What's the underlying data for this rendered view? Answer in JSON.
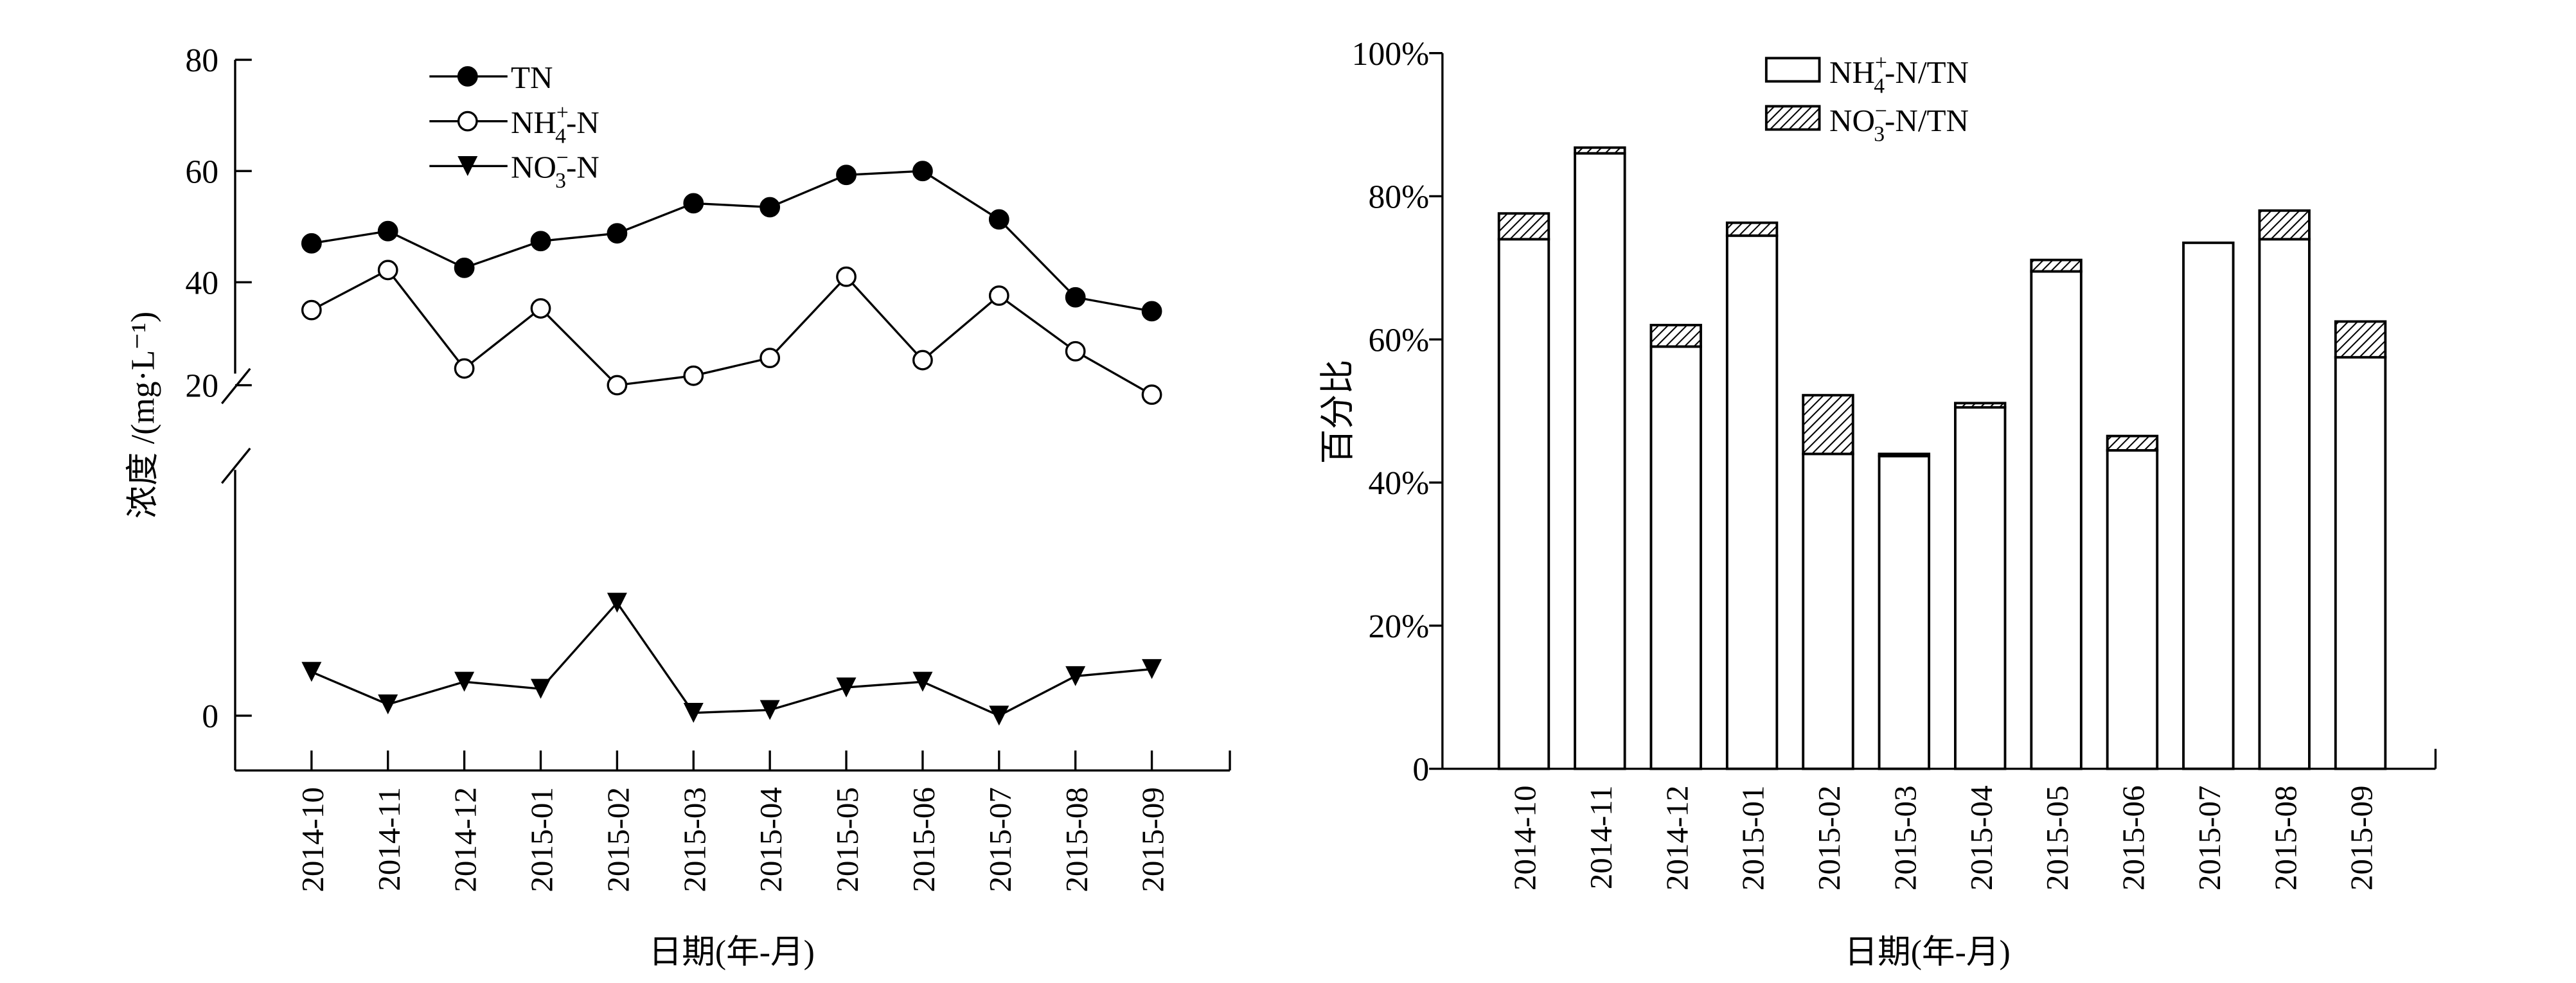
{
  "chart_data": [
    {
      "type": "line",
      "categories": [
        "2014-10",
        "2014-11",
        "2014-12",
        "2015-01",
        "2015-02",
        "2015-03",
        "2015-04",
        "2015-05",
        "2015-06",
        "2015-07",
        "2015-08",
        "2015-09"
      ],
      "xlabel": "日期(年-月)",
      "ylabel": "浓度 /(mg·L⁻¹)",
      "yticks": [
        "0",
        "20",
        "40",
        "60",
        "80"
      ],
      "axis_break": "between 0 and 20",
      "series": [
        {
          "name": "TN",
          "marker": "filled-circle",
          "values": [
            47.0,
            49.2,
            42.6,
            47.4,
            48.8,
            54.2,
            53.5,
            59.3,
            60.0,
            51.3,
            37.3,
            34.8
          ]
        },
        {
          "name": "NH4+-N",
          "label_main": "NH",
          "label_sub": "4",
          "label_sup": "+",
          "label_tail": "-N",
          "marker": "open-circle",
          "values": [
            35.0,
            42.2,
            24.5,
            35.3,
            21.5,
            23.2,
            26.4,
            41.0,
            26.0,
            37.6,
            27.6,
            19.8
          ]
        },
        {
          "name": "NO3--N",
          "label_main": "NO",
          "label_sub": "3",
          "label_sup": "−",
          "label_tail": "-N",
          "marker": "filled-triangle-down",
          "values": [
            1.55,
            0.4,
            1.2,
            0.95,
            4.0,
            0.1,
            0.2,
            1.0,
            1.2,
            0.0,
            1.4,
            1.65
          ]
        }
      ]
    },
    {
      "type": "bar",
      "stacked": true,
      "categories": [
        "2014-10",
        "2014-11",
        "2014-12",
        "2015-01",
        "2015-02",
        "2015-03",
        "2015-04",
        "2015-05",
        "2015-06",
        "2015-07",
        "2015-08",
        "2015-09"
      ],
      "xlabel": "日期(年-月)",
      "ylabel": "百分比",
      "yticks": [
        "0",
        "20%",
        "40%",
        "60%",
        "80%",
        "100%"
      ],
      "ylim": [
        0,
        100
      ],
      "series": [
        {
          "name": "NH4+-N/TN",
          "label_main": "NH",
          "label_sub": "4",
          "label_sup": "+",
          "label_tail": "-N/TN",
          "fill": "white",
          "values": [
            74,
            86,
            59,
            74.5,
            44,
            43.7,
            50.5,
            69.5,
            44.5,
            73.5,
            74,
            57.5
          ]
        },
        {
          "name": "NO3--N/TN",
          "label_main": "NO",
          "label_sub": "3",
          "label_sup": "−",
          "label_tail": "-N/TN",
          "fill": "hatched",
          "values": [
            3.6,
            0.8,
            3.0,
            1.8,
            8.2,
            0.3,
            0.6,
            1.6,
            2.0,
            0,
            4.0,
            5.0
          ]
        }
      ]
    }
  ]
}
